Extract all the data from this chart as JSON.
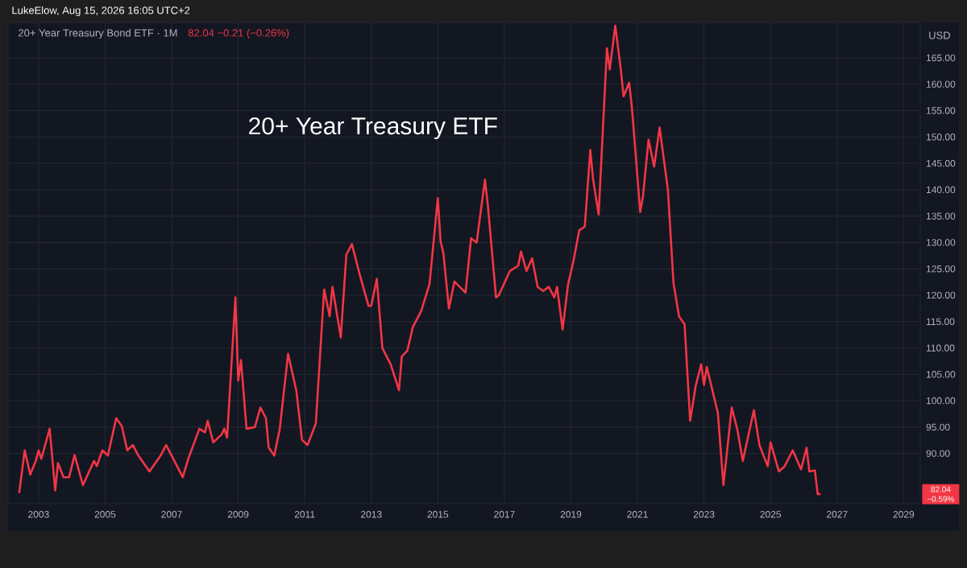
{
  "chart_data": {
    "type": "line",
    "title": "20+ Year Treasury ETF",
    "subtitle": "20+ Year Treasury Bond ETF · 1M",
    "ylabel": "USD",
    "annotations": [
      "LukeElow, Aug 15, 2026 16:05 UTC+2",
      "82.04 −0.21 (−0.26%)",
      "82.04 −0.59%"
    ],
    "series": [
      {
        "color": "#f23645",
        "x": [
          "2002-06",
          "2002-08",
          "2002-10",
          "2002-12",
          "2003-01",
          "2003-02",
          "2003-05",
          "2003-07",
          "2003-08",
          "2003-10",
          "2003-12",
          "2004-02",
          "2004-05",
          "2004-09",
          "2004-10",
          "2004-12",
          "2005-02",
          "2005-05",
          "2005-07",
          "2005-09",
          "2005-11",
          "2006-01",
          "2006-05",
          "2006-09",
          "2006-11",
          "2007-01",
          "2007-05",
          "2007-07",
          "2007-11",
          "2008-01",
          "2008-02",
          "2008-04",
          "2008-07",
          "2008-08",
          "2008-09",
          "2008-12",
          "2009-01",
          "2009-02",
          "2009-04",
          "2009-07",
          "2009-09",
          "2009-11",
          "2009-12",
          "2010-02",
          "2010-04",
          "2010-07",
          "2010-10",
          "2010-12",
          "2011-02",
          "2011-05",
          "2011-08",
          "2011-10",
          "2011-11",
          "2012-02",
          "2012-04",
          "2012-06",
          "2012-09",
          "2012-12",
          "2013-01",
          "2013-03",
          "2013-05",
          "2013-08",
          "2013-11",
          "2013-12",
          "2014-02",
          "2014-04",
          "2014-07",
          "2014-10",
          "2015-01",
          "2015-02",
          "2015-03",
          "2015-05",
          "2015-07",
          "2015-10",
          "2015-11",
          "2016-01",
          "2016-03",
          "2016-06",
          "2016-07",
          "2016-10",
          "2016-11",
          "2017-03",
          "2017-06",
          "2017-07",
          "2017-09",
          "2017-11",
          "2018-01",
          "2018-03",
          "2018-05",
          "2018-07",
          "2018-08",
          "2018-10",
          "2018-12",
          "2019-02",
          "2019-04",
          "2019-06",
          "2019-08",
          "2019-09",
          "2019-11",
          "2020-02",
          "2020-03",
          "2020-05",
          "2020-07",
          "2020-08",
          "2020-10",
          "2020-11",
          "2021-02",
          "2021-03",
          "2021-05",
          "2021-07",
          "2021-09",
          "2021-12",
          "2022-02",
          "2022-04",
          "2022-06",
          "2022-08",
          "2022-10",
          "2022-12",
          "2023-01",
          "2023-02",
          "2023-06",
          "2023-08",
          "2023-11",
          "2024-01",
          "2024-03",
          "2024-07",
          "2024-09",
          "2024-12",
          "2025-01",
          "2025-04",
          "2025-06",
          "2025-09",
          "2025-12",
          "2026-02",
          "2026-03",
          "2026-05",
          "2026-06",
          "2026-07"
        ],
        "values": [
          82.5,
          90.6,
          86,
          88.6,
          90.6,
          89,
          94.7,
          83,
          88.2,
          85.5,
          85.5,
          89.7,
          84,
          88.6,
          87.6,
          90.6,
          89.6,
          96.7,
          95.2,
          90.6,
          91.6,
          89.6,
          86.6,
          89.6,
          91.6,
          89.6,
          85.5,
          89,
          94.7,
          94,
          96.2,
          92.1,
          93.6,
          94.7,
          93,
          119.6,
          103.8,
          107.7,
          94.7,
          95,
          98.7,
          96.7,
          91.1,
          89.6,
          94.7,
          108.9,
          101.8,
          92.6,
          91.6,
          95.7,
          121.1,
          116,
          121.6,
          112,
          127.7,
          129.7,
          123.6,
          118,
          118,
          123.1,
          110,
          106.9,
          102,
          108.4,
          109.5,
          114,
          117,
          122.1,
          138.4,
          130.2,
          128,
          117.5,
          122.6,
          121,
          120.5,
          130.8,
          130,
          141.9,
          137.3,
          119.6,
          120,
          124.6,
          125.6,
          128.3,
          124.6,
          127,
          121.6,
          120.8,
          121.6,
          119.6,
          121.6,
          113.5,
          122.1,
          126.7,
          132.3,
          133,
          147.5,
          142,
          135.3,
          166.8,
          162.8,
          171.1,
          162.8,
          157.7,
          160.3,
          155.6,
          135.8,
          138.8,
          149.5,
          144.4,
          151.8,
          139.9,
          122.3,
          116,
          114.5,
          96.2,
          102.8,
          106.9,
          103,
          106.4,
          97.7,
          84,
          98.7,
          94.6,
          88.6,
          98.2,
          91.6,
          87.6,
          92.1,
          86.6,
          87.5,
          90.6,
          87,
          91.1,
          86.6,
          86.8,
          82.3,
          82.3
        ]
      }
    ],
    "xlim": [
      "2002-02",
      "2029-07"
    ],
    "ylim": [
      80.5,
      171.7
    ],
    "xticks": [
      "2003",
      "2005",
      "2007",
      "2009",
      "2011",
      "2013",
      "2015",
      "2017",
      "2019",
      "2021",
      "2023",
      "2025",
      "2027",
      "2029"
    ],
    "yticks": [
      {
        "value": 90,
        "label": "90.00"
      },
      {
        "value": 95,
        "label": "95.00"
      },
      {
        "value": 100,
        "label": "100.00"
      },
      {
        "value": 105,
        "label": "105.00"
      },
      {
        "value": 110,
        "label": "110.00"
      },
      {
        "value": 115,
        "label": "115.00"
      },
      {
        "value": 120,
        "label": "120.00"
      },
      {
        "value": 125,
        "label": "125.00"
      },
      {
        "value": 130,
        "label": "130.00"
      },
      {
        "value": 135,
        "label": "135.00"
      },
      {
        "value": 140,
        "label": "140.00"
      },
      {
        "value": 145,
        "label": "145.00"
      },
      {
        "value": 150,
        "label": "150.00"
      },
      {
        "value": 155,
        "label": "155.00"
      },
      {
        "value": 160,
        "label": "160.00"
      },
      {
        "value": 165,
        "label": "165.00"
      }
    ],
    "grid": true
  }
}
